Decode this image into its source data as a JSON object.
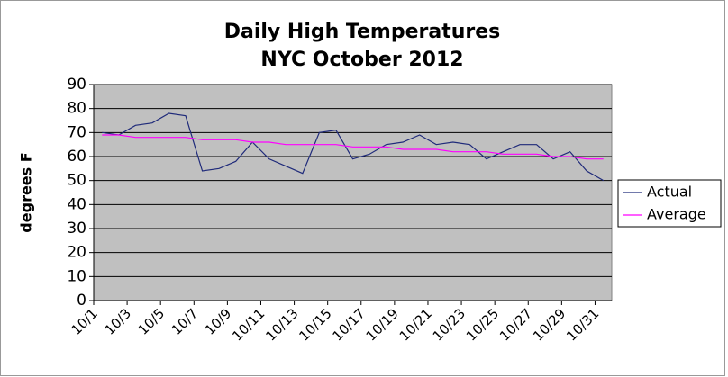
{
  "chart_data": {
    "type": "line",
    "title": "Daily High Temperatures",
    "subtitle": "NYC October 2012",
    "y_label": "degrees F",
    "categories": [
      "10/1",
      null,
      "10/3",
      null,
      "10/5",
      null,
      "10/7",
      null,
      "10/9",
      null,
      "10/11",
      null,
      "10/13",
      null,
      "10/15",
      null,
      "10/17",
      null,
      "10/19",
      null,
      "10/21",
      null,
      "10/23",
      null,
      "10/25",
      null,
      "10/27",
      null,
      "10/29",
      null,
      "10/31"
    ],
    "series": [
      {
        "name": "Actual",
        "color": "#1f2a7a",
        "values": [
          70,
          69,
          73,
          74,
          78,
          77,
          54,
          55,
          58,
          66,
          59,
          56,
          53,
          70,
          71,
          59,
          61,
          65,
          66,
          69,
          65,
          66,
          65,
          59,
          62,
          65,
          65,
          59,
          62,
          54,
          50
        ]
      },
      {
        "name": "Average",
        "color": "#ff00ff",
        "values": [
          69,
          69,
          68,
          68,
          68,
          68,
          67,
          67,
          67,
          66,
          66,
          65,
          65,
          65,
          65,
          64,
          64,
          64,
          63,
          63,
          63,
          62,
          62,
          62,
          61,
          61,
          61,
          60,
          60,
          59,
          59
        ]
      }
    ],
    "ylim": [
      0,
      90
    ],
    "yticks": [
      0,
      10,
      20,
      30,
      40,
      50,
      60,
      70,
      80,
      90
    ],
    "grid": true,
    "plot_background": "#c0c0c0",
    "legend": "right"
  }
}
